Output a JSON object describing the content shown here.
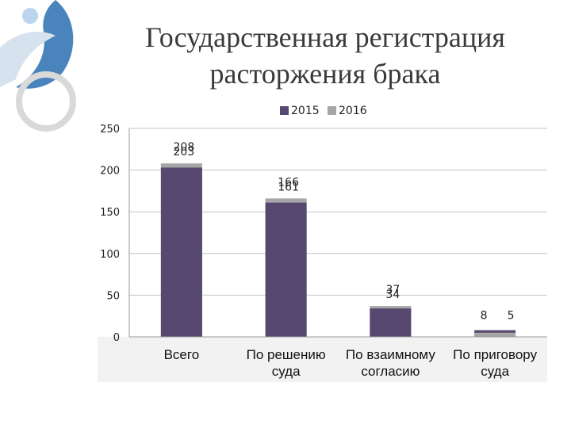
{
  "page": {
    "title_line1": "Государственная регистрация",
    "title_line2": "расторжения брака"
  },
  "colors": {
    "series_2015": "#56486e",
    "series_2016": "#a6a6a6",
    "gridline": "#c4c4c4",
    "deco_blue": "#2a6fb0",
    "deco_light": "#d6e3ef"
  },
  "chart_data": {
    "type": "bar",
    "title": "",
    "xlabel": "",
    "ylabel": "",
    "categories": [
      "Всего",
      "По решению суда",
      "По взаимному согласию",
      "По приговору суда"
    ],
    "category_lines": [
      [
        "Всего"
      ],
      [
        "По решению",
        "суда"
      ],
      [
        "По взаимному",
        "согласию"
      ],
      [
        "По приговору",
        "суда"
      ]
    ],
    "series": [
      {
        "name": "2015",
        "values": [
          203,
          161,
          34,
          8
        ]
      },
      {
        "name": "2016",
        "values": [
          208,
          166,
          37,
          5
        ]
      }
    ],
    "ylim": [
      0,
      250
    ],
    "yticks": [
      0,
      50,
      100,
      150,
      200,
      250
    ],
    "grid": true,
    "stacked_overlap": true,
    "legend_position": "top"
  }
}
